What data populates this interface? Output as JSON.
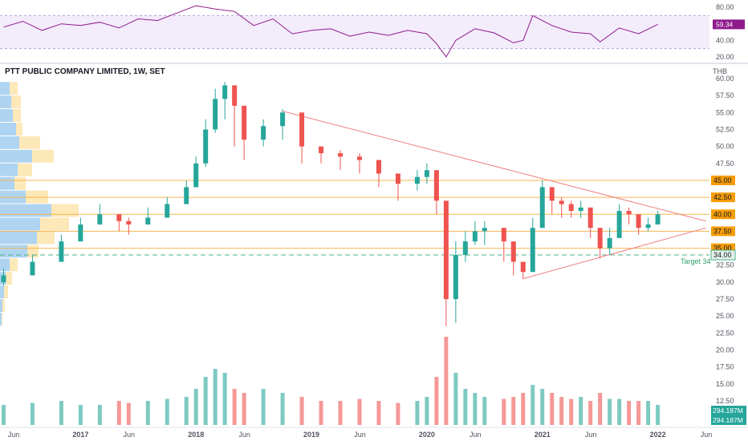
{
  "header": {
    "title": "PTT PUBLIC COMPANY LIMITED, 1W, SET",
    "currency": "THB"
  },
  "colors": {
    "up": "#26a69a",
    "down": "#ef5350",
    "rsi_line": "#8e1b8c",
    "rsi_band": "#eadcf7",
    "level_line": "#f5b552",
    "level_badge": "#f59d0a",
    "trend_line": "#ef7f7f",
    "target_line": "#4caf85",
    "vp_blue": "#aed4f2",
    "vp_cream": "#fde8b8"
  },
  "chart_data": [
    {
      "type": "line",
      "name": "RSI",
      "yticks": [
        "80.00",
        "60.00",
        "40.00",
        "20.00"
      ],
      "ylim": [
        15,
        85
      ],
      "bands": [
        30,
        70
      ],
      "current_label": "59.34",
      "x": [
        "2016-05",
        "2016-07",
        "2016-09",
        "2016-11",
        "2017-01",
        "2017-03",
        "2017-05",
        "2017-07",
        "2017-09",
        "2017-11",
        "2018-01",
        "2018-03",
        "2018-05",
        "2018-07",
        "2018-09",
        "2018-11",
        "2019-01",
        "2019-03",
        "2019-05",
        "2019-07",
        "2019-09",
        "2019-11",
        "2020-01",
        "2020-02",
        "2020-03",
        "2020-04",
        "2020-06",
        "2020-08",
        "2020-10",
        "2020-11",
        "2020-12",
        "2021-02",
        "2021-04",
        "2021-06",
        "2021-07",
        "2021-09",
        "2021-11",
        "2022-01"
      ],
      "values": [
        56,
        63,
        52,
        60,
        58,
        62,
        55,
        66,
        64,
        73,
        82,
        78,
        75,
        58,
        66,
        48,
        52,
        54,
        45,
        50,
        46,
        52,
        48,
        36,
        20,
        40,
        54,
        49,
        37,
        40,
        70,
        58,
        50,
        48,
        38,
        55,
        48,
        59.34
      ]
    },
    {
      "type": "candlestick",
      "name": "PTT weekly price",
      "yticks": [
        "60.00",
        "57.50",
        "55.00",
        "52.50",
        "50.00",
        "47.50",
        "45.00",
        "42.50",
        "40.00",
        "37.50",
        "35.00",
        "32.50",
        "30.00",
        "27.50",
        "25.00",
        "22.50",
        "20.00",
        "17.50",
        "15.00",
        "12.50"
      ],
      "ylim": [
        12.5,
        60
      ],
      "xticks": [
        "Jun",
        "2017",
        "Jun",
        "2018",
        "Jun",
        "2019",
        "Jun",
        "2020",
        "Jun",
        "2021",
        "Jun",
        "2022",
        "Jun"
      ],
      "x": [
        "2016-05",
        "2016-08",
        "2016-11",
        "2017-01",
        "2017-03",
        "2017-05",
        "2017-06",
        "2017-08",
        "2017-10",
        "2017-12",
        "2018-01",
        "2018-02",
        "2018-03",
        "2018-04",
        "2018-05",
        "2018-06",
        "2018-08",
        "2018-10",
        "2018-12",
        "2019-02",
        "2019-04",
        "2019-06",
        "2019-08",
        "2019-10",
        "2019-12",
        "2020-01",
        "2020-02",
        "2020-03",
        "2020-04",
        "2020-05",
        "2020-06",
        "2020-07",
        "2020-09",
        "2020-10",
        "2020-11",
        "2020-12",
        "2021-01",
        "2021-02",
        "2021-03",
        "2021-04",
        "2021-05",
        "2021-06",
        "2021-07",
        "2021-08",
        "2021-09",
        "2021-10",
        "2021-11",
        "2021-12",
        "2022-01"
      ],
      "close": [
        31,
        33,
        36,
        38.5,
        40,
        39,
        38.5,
        39.5,
        41.5,
        44,
        47.5,
        52.5,
        57,
        59,
        56,
        51,
        53,
        55,
        50,
        49,
        48.5,
        48,
        46,
        44.5,
        45.5,
        46.5,
        42,
        27.5,
        34,
        36,
        37.5,
        38,
        36,
        33,
        31.5,
        38,
        44,
        42,
        41.5,
        40.5,
        41,
        38,
        35,
        36.5,
        40.5,
        40,
        38,
        38.5,
        40
      ],
      "high": [
        32,
        34,
        37,
        39.5,
        41.5,
        40,
        39.5,
        41,
        42.5,
        45,
        48.5,
        54,
        58.5,
        59.5,
        57,
        52,
        54,
        55.5,
        51,
        50,
        49.5,
        49,
        47,
        45.5,
        46.5,
        47.5,
        46.5,
        38.5,
        36,
        37.5,
        39,
        39,
        37.5,
        34.5,
        33,
        39.5,
        45,
        43.5,
        42.5,
        42,
        42,
        40,
        37.5,
        38,
        41.5,
        41,
        40,
        39.5,
        40.5
      ],
      "low": [
        29.5,
        31,
        34.5,
        37,
        38.5,
        37.5,
        37,
        38.5,
        40.5,
        42,
        44,
        47,
        52,
        54,
        50,
        48,
        50,
        51,
        47.5,
        47.5,
        46.5,
        46,
        44,
        42,
        43.5,
        44.5,
        40,
        23.5,
        24,
        33,
        35.5,
        35.5,
        33,
        31,
        30.5,
        33.5,
        38.5,
        40,
        39.5,
        39.5,
        39.5,
        36.5,
        33.5,
        34,
        37,
        38.5,
        37,
        37.5,
        38.5
      ],
      "volume_labels": [
        "294.187M",
        "294.187M"
      ],
      "volume": [
        5,
        5.5,
        6,
        5,
        5,
        6,
        5.5,
        6,
        6.5,
        7,
        9,
        12,
        14,
        13,
        9,
        8,
        9,
        8,
        7,
        6,
        6,
        6.5,
        6,
        5.5,
        6,
        7,
        12,
        22,
        13,
        9,
        8,
        7,
        6.5,
        7,
        8,
        10,
        9,
        8,
        7,
        6.5,
        7,
        6,
        8,
        6.5,
        6.5,
        6,
        6,
        6,
        5
      ],
      "levels": [
        "45.00",
        "42.50",
        "40.00",
        "37.50",
        "35.00"
      ],
      "target": {
        "label": "Target 34",
        "badge": "34.00",
        "value": 34
      },
      "trendlines": [
        {
          "from": [
            "2018-10",
            55.2
          ],
          "to": [
            "2022-06",
            39
          ]
        },
        {
          "from": [
            "2020-11",
            30.5
          ],
          "to": [
            "2022-06",
            38
          ]
        }
      ],
      "volume_profile": [
        {
          "price": 58.5,
          "blue": 12,
          "cream": 10
        },
        {
          "price": 56.5,
          "blue": 14,
          "cream": 12
        },
        {
          "price": 54.5,
          "blue": 16,
          "cream": 10
        },
        {
          "price": 52.5,
          "blue": 20,
          "cream": 8
        },
        {
          "price": 50.5,
          "blue": 24,
          "cream": 26
        },
        {
          "price": 48.5,
          "blue": 40,
          "cream": 27
        },
        {
          "price": 46.5,
          "blue": 22,
          "cream": 18
        },
        {
          "price": 44.5,
          "blue": 18,
          "cream": 14
        },
        {
          "price": 42.5,
          "blue": 32,
          "cream": 28
        },
        {
          "price": 40.5,
          "blue": 64,
          "cream": 34
        },
        {
          "price": 38.5,
          "blue": 50,
          "cream": 36
        },
        {
          "price": 36.5,
          "blue": 46,
          "cream": 22
        },
        {
          "price": 34.5,
          "blue": 34,
          "cream": 14
        },
        {
          "price": 32.5,
          "blue": 12,
          "cream": 10
        },
        {
          "price": 30.5,
          "blue": 7,
          "cream": 8
        },
        {
          "price": 28.5,
          "blue": 5,
          "cream": 5
        },
        {
          "price": 26.5,
          "blue": 3,
          "cream": 3
        },
        {
          "price": 24.5,
          "blue": 2,
          "cream": 1
        }
      ]
    }
  ]
}
